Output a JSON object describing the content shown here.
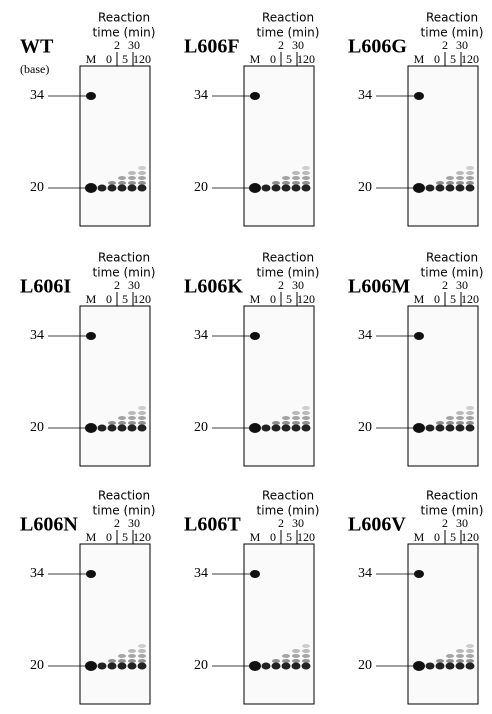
{
  "header": [
    "Reaction",
    "time (min)"
  ],
  "panels": [
    {
      "name": "WT",
      "note": "(base)",
      "lanes_top": [
        "2",
        "30"
      ],
      "lanes_bottom": [
        "M",
        "0",
        "5",
        "120"
      ],
      "markers": [
        "34",
        "20"
      ]
    },
    {
      "name": "L606F",
      "lanes_top": [
        "2",
        "30"
      ],
      "lanes_bottom": [
        "M",
        "0",
        "5",
        "120"
      ],
      "markers": [
        "34",
        "20"
      ]
    },
    {
      "name": "L606G",
      "lanes_top": [
        "2",
        "30"
      ],
      "lanes_bottom": [
        "M",
        "0",
        "5",
        "120"
      ],
      "markers": [
        "34",
        "20"
      ]
    },
    {
      "name": "L606I",
      "lanes_top": [
        "2",
        "30"
      ],
      "lanes_bottom": [
        "M",
        "0",
        "5",
        "120"
      ],
      "markers": [
        "34",
        "20"
      ]
    },
    {
      "name": "L606K",
      "lanes_top": [
        "2",
        "30"
      ],
      "lanes_bottom": [
        "M",
        "0",
        "5",
        "120"
      ],
      "markers": [
        "34",
        "20"
      ]
    },
    {
      "name": "L606M",
      "lanes_top": [
        "2",
        "30"
      ],
      "lanes_bottom": [
        "M",
        "0",
        "5",
        "120"
      ],
      "markers": [
        "34",
        "20"
      ]
    },
    {
      "name": "L606N",
      "lanes_top": [
        "2",
        "30"
      ],
      "lanes_bottom": [
        "M",
        "0",
        "5",
        "120"
      ],
      "markers": [
        "34",
        "20"
      ]
    },
    {
      "name": "L606T",
      "lanes_top": [
        "2",
        "30"
      ],
      "lanes_bottom": [
        "M",
        "0",
        "5",
        "120"
      ],
      "markers": [
        "34",
        "20"
      ]
    },
    {
      "name": "L606V",
      "lanes_top": [
        "2",
        "30"
      ],
      "lanes_bottom": [
        "M",
        "0",
        "5",
        "120"
      ],
      "markers": [
        "34",
        "20"
      ]
    }
  ]
}
